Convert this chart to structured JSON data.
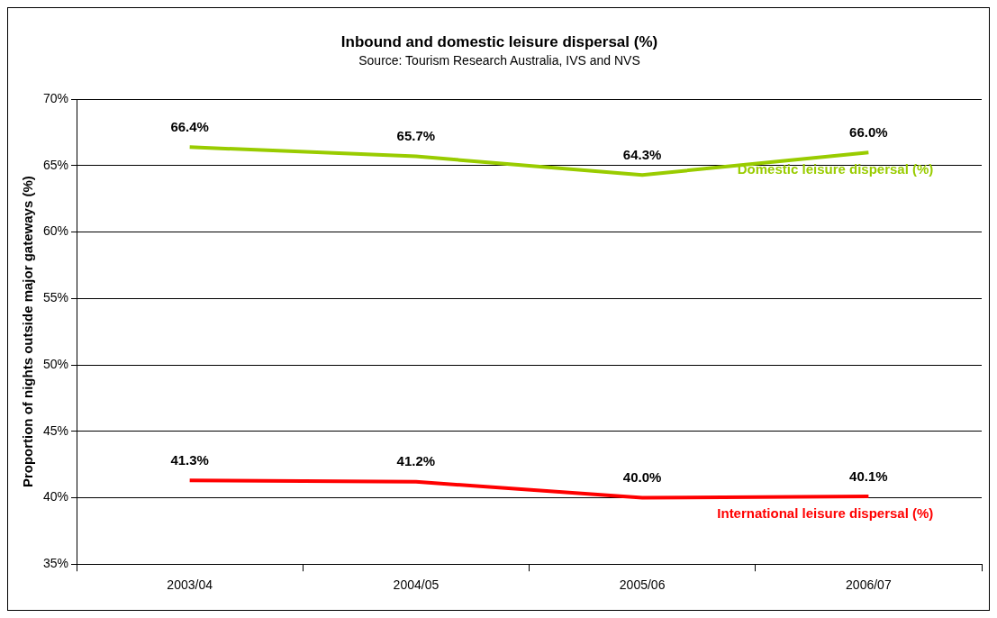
{
  "chart_data": {
    "type": "line",
    "title": "Inbound and domestic leisure dispersal (%)",
    "subtitle": "Source: Tourism Research Australia, IVS and NVS",
    "ylabel": "Proportion of nights outside major gateways (%)",
    "categories": [
      "2003/04",
      "2004/05",
      "2005/06",
      "2006/07"
    ],
    "series": [
      {
        "name": "Domestic leisure dispersal (%)",
        "color": "#99cc00",
        "values": [
          66.4,
          65.7,
          64.3,
          66.0
        ],
        "value_labels": [
          "66.4%",
          "65.7%",
          "64.3%",
          "66.0%"
        ]
      },
      {
        "name": "International leisure dispersal (%)",
        "color": "#ff0000",
        "values": [
          41.3,
          41.2,
          40.0,
          40.1
        ],
        "value_labels": [
          "41.3%",
          "41.2%",
          "40.0%",
          "40.1%"
        ]
      }
    ],
    "ylim": [
      35,
      70
    ],
    "yticks": [
      {
        "value": 35,
        "label": "35%"
      },
      {
        "value": 40,
        "label": "40%"
      },
      {
        "value": 45,
        "label": "45%"
      },
      {
        "value": 50,
        "label": "50%"
      },
      {
        "value": 55,
        "label": "55%"
      },
      {
        "value": 60,
        "label": "60%"
      },
      {
        "value": 65,
        "label": "65%"
      },
      {
        "value": 70,
        "label": "70%"
      }
    ],
    "grid": "y",
    "marker": "none",
    "line_style": "solid",
    "legend": false
  }
}
